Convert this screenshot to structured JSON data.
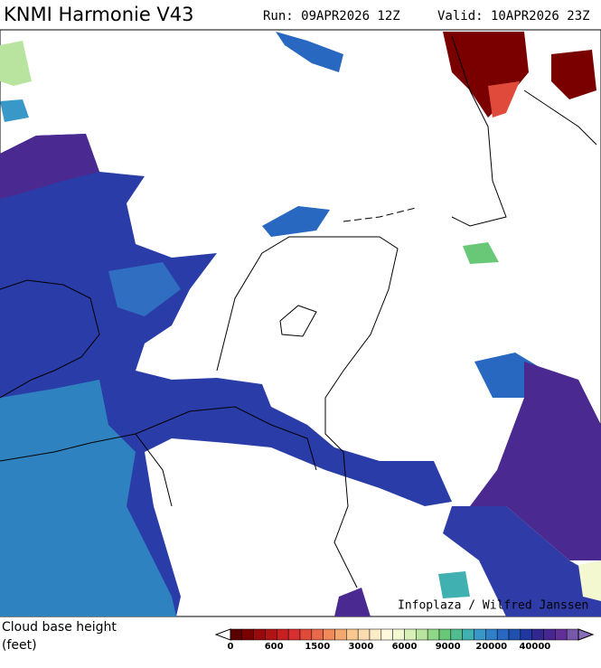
{
  "header": {
    "model": "KNMI Harmonie V43",
    "run": "Run: 09APR2026 12Z",
    "valid": "Valid: 10APR2026 23Z"
  },
  "credit": "Infoplaza / Wilfred Janssen",
  "legend": {
    "title": "Cloud base height",
    "unit": "(feet)",
    "labels": [
      0,
      600,
      1500,
      3000,
      6000,
      9000,
      20000,
      40000
    ],
    "colors": [
      "#5a0000",
      "#7a0000",
      "#9a0a0a",
      "#b01515",
      "#c82020",
      "#d83030",
      "#e04a3a",
      "#e8684a",
      "#f08a5a",
      "#f4a870",
      "#f8c890",
      "#fadcb0",
      "#fcecc8",
      "#fef8dc",
      "#f4f8d0",
      "#d8f0b8",
      "#b8e4a0",
      "#90d888",
      "#68c878",
      "#50bc90",
      "#40b0b0",
      "#3898c8",
      "#3080c8",
      "#2868c0",
      "#2050b0",
      "#2038a0",
      "#302890",
      "#482890",
      "#603098",
      "#7858a8"
    ]
  }
}
